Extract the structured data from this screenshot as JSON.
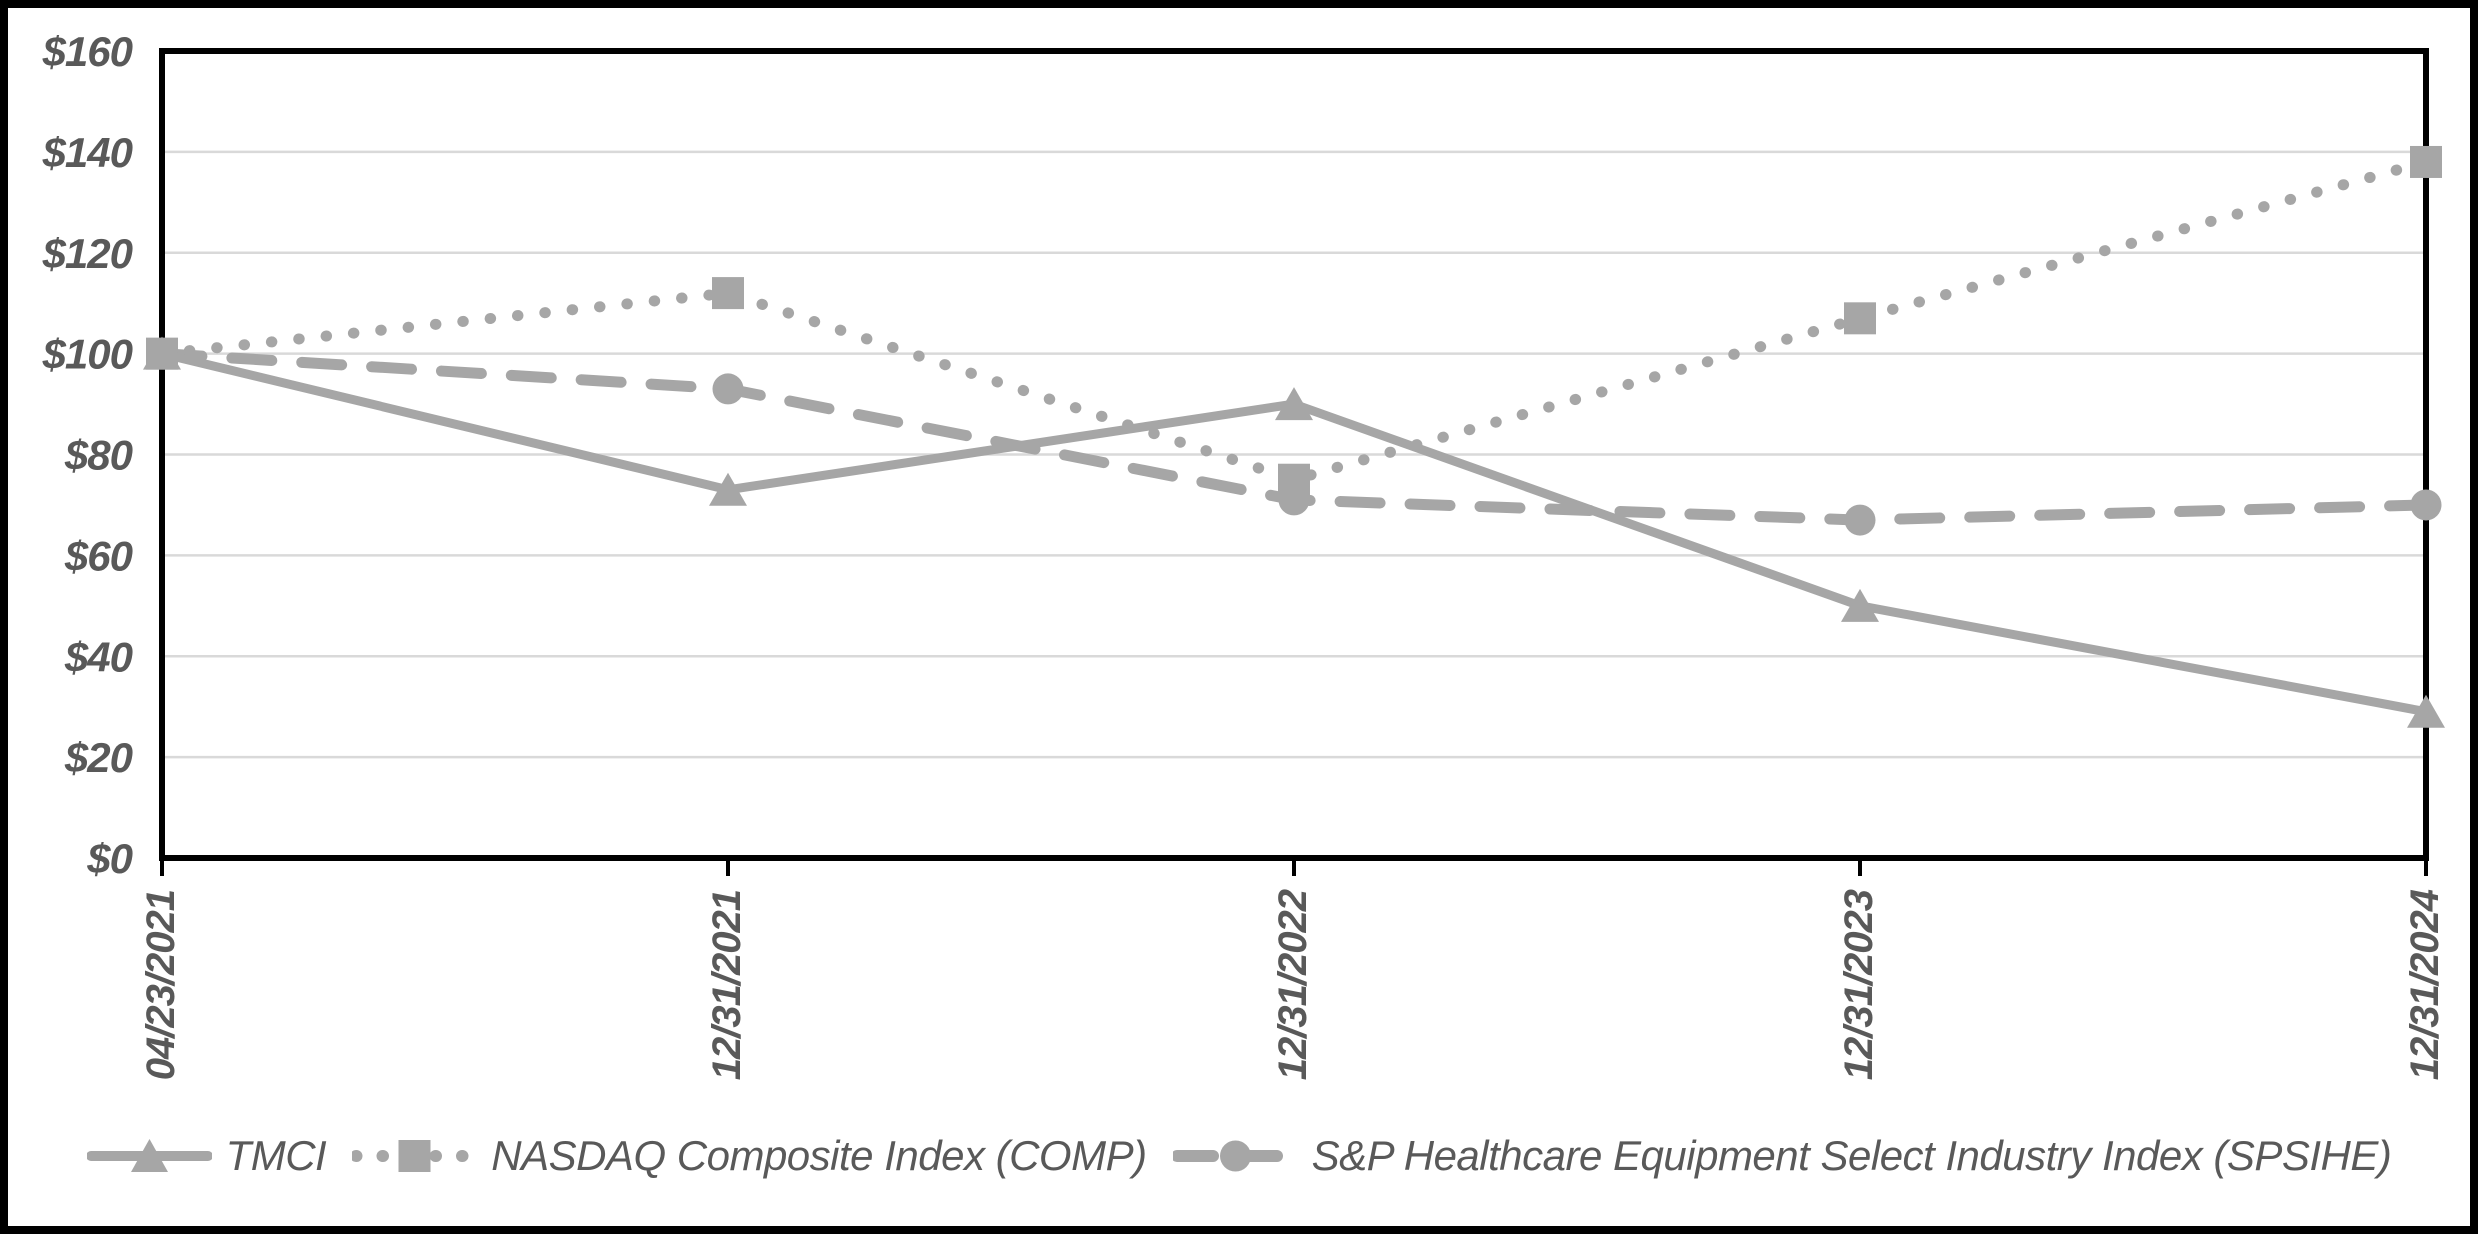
{
  "figure": {
    "colors": {
      "background": "#ffffff",
      "outer_border": "#000000",
      "plot_border": "#000000",
      "gridline": "#d9d9d9",
      "series": "#a6a6a6",
      "text": "#595959"
    }
  },
  "chart_data": {
    "type": "line",
    "title": "",
    "categories": [
      "04/23/2021",
      "12/31/2021",
      "12/31/2022",
      "12/31/2023",
      "12/31/2024"
    ],
    "series": [
      {
        "name": "TMCI",
        "marker": "triangle",
        "line_style": "solid",
        "values": [
          100,
          73,
          90,
          50,
          29
        ]
      },
      {
        "name": "NASDAQ Composite Index (COMP)",
        "marker": "square",
        "line_style": "dotted",
        "values": [
          100,
          112,
          75,
          107,
          138
        ]
      },
      {
        "name": "S&P Healthcare Equipment Select Industry Index (SPSIHE)",
        "marker": "circle",
        "line_style": "dashed",
        "values": [
          100,
          93,
          71,
          67,
          70
        ]
      }
    ],
    "y_axis": {
      "min": 0,
      "max": 160,
      "step": 20,
      "tick_labels": [
        "$0",
        "$20",
        "$40",
        "$60",
        "$80",
        "$100",
        "$120",
        "$140",
        "$160"
      ]
    },
    "x_axis": {
      "tick_labels_rotation_deg": -90
    },
    "legend_position": "bottom",
    "grid": "horizontal"
  }
}
